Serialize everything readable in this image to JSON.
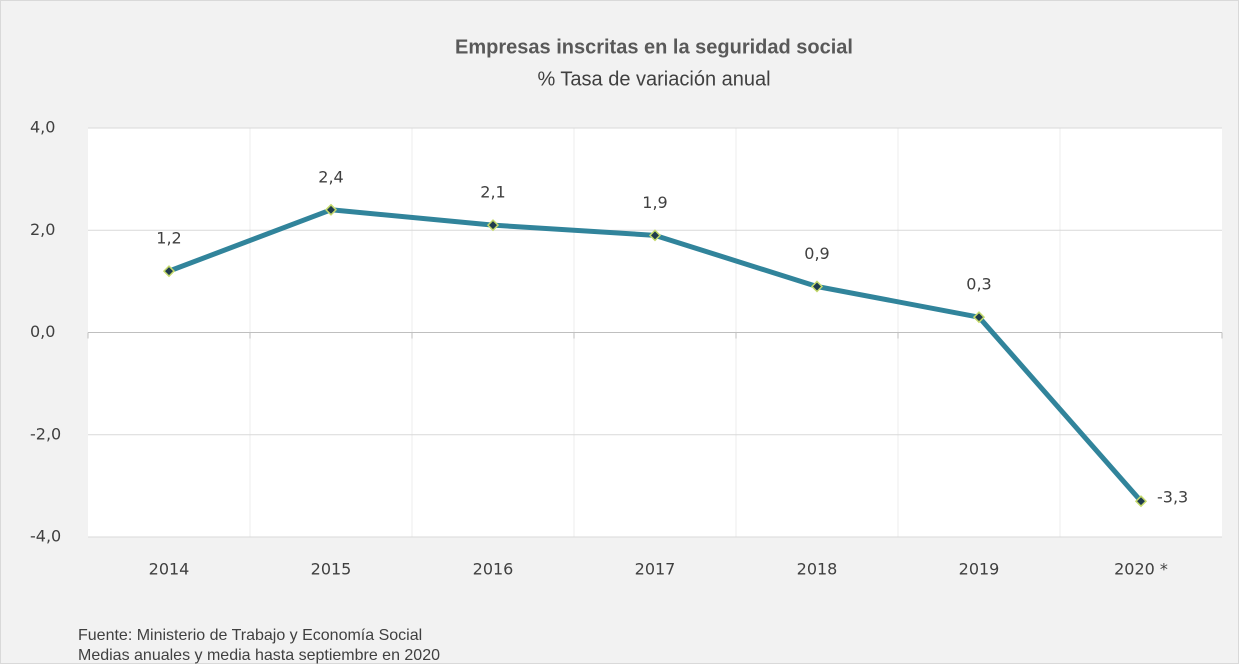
{
  "chart_data": {
    "type": "line",
    "title": "Empresas inscritas en la seguridad social",
    "subtitle": "% Tasa de variación anual",
    "categories": [
      "2014",
      "2015",
      "2016",
      "2017",
      "2018",
      "2019",
      "2020 *"
    ],
    "values": [
      1.2,
      2.4,
      2.1,
      1.9,
      0.9,
      0.3,
      -3.3
    ],
    "value_labels": [
      "1,2",
      "2,4",
      "2,1",
      "1,9",
      "0,9",
      "0,3",
      "-3,3"
    ],
    "color": "#31849b",
    "marker_color": "#c4d96b",
    "ylim": [
      -4,
      4
    ],
    "yticks": [
      {
        "value": -4,
        "label": "-4,0"
      },
      {
        "value": -2,
        "label": "-2,0"
      },
      {
        "value": 0,
        "label": "0,0"
      },
      {
        "value": 2,
        "label": "2,0"
      },
      {
        "value": 4,
        "label": "4,0"
      }
    ],
    "grid": true,
    "notes": [
      "Fuente: Ministerio de Trabajo y Economía Social",
      "Medias anuales y media hasta septiembre en 2020"
    ]
  }
}
